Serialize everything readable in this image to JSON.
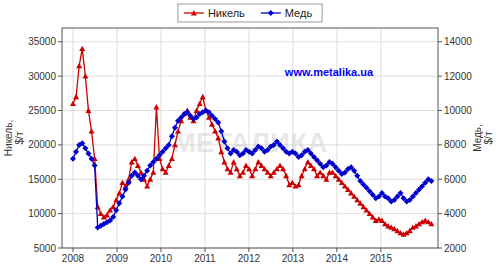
{
  "chart_data": {
    "type": "line",
    "ylabel": "Никель,\n$/т",
    "y2label": "Медь,\n$/т",
    "annotations": [
      {
        "text": "www.metalika.ua",
        "color": "#0000ff"
      },
      {
        "text": "МЕТАЛИКА",
        "color": "#cccccc"
      }
    ],
    "legend": "top",
    "grid": true,
    "xlim": [
      2007.75,
      2016.3
    ],
    "xticks": [
      2008,
      2009,
      2010,
      2011,
      2012,
      2013,
      2014,
      2015
    ],
    "ylim": [
      5000,
      37000
    ],
    "yticks": [
      5000,
      10000,
      15000,
      20000,
      25000,
      30000,
      35000
    ],
    "y2lim": [
      2000,
      14800
    ],
    "y2ticks": [
      2000,
      4000,
      6000,
      8000,
      10000,
      12000,
      14000
    ],
    "x": [
      2008,
      2008.0703,
      2008.1405,
      2008.2108,
      2008.281,
      2008.3513,
      2008.4216,
      2008.4918,
      2008.5621,
      2008.6323,
      2008.7026,
      2008.7728,
      2008.8431,
      2008.9134,
      2008.9836,
      2009.0539,
      2009.1241,
      2009.1944,
      2009.2647,
      2009.3349,
      2009.4052,
      2009.4754,
      2009.5457,
      2009.6159,
      2009.6862,
      2009.7565,
      2009.8267,
      2009.897,
      2009.9672,
      2010.0375,
      2010.1078,
      2010.178,
      2010.2483,
      2010.3185,
      2010.3888,
      2010.4591,
      2010.5293,
      2010.5996,
      2010.6698,
      2010.7401,
      2010.8103,
      2010.8806,
      2010.9509,
      2011.0211,
      2011.0914,
      2011.1616,
      2011.2319,
      2011.3022,
      2011.3724,
      2011.4427,
      2011.5129,
      2011.5832,
      2011.6534,
      2011.7237,
      2011.794,
      2011.8642,
      2011.9345,
      2012.0047,
      2012.075,
      2012.1453,
      2012.2155,
      2012.2858,
      2012.356,
      2012.4263,
      2012.4966,
      2012.5668,
      2012.6371,
      2012.7073,
      2012.7776,
      2012.8478,
      2012.9181,
      2012.9884,
      2013.0586,
      2013.1289,
      2013.1991,
      2013.2694,
      2013.3397,
      2013.4099,
      2013.4802,
      2013.5504,
      2013.6207,
      2013.6909,
      2013.7612,
      2013.8315,
      2013.9017,
      2013.972,
      2014.0422,
      2014.1125,
      2014.1828,
      2014.253,
      2014.3233,
      2014.3935,
      2014.4638,
      2014.5341,
      2014.6043,
      2014.6746,
      2014.7448,
      2014.8151,
      2014.8853,
      2014.9556,
      2015.0259,
      2015.0961,
      2015.1664,
      2015.2366,
      2015.3069,
      2015.3772,
      2015.4474,
      2015.5177,
      2015.5879,
      2015.6582,
      2015.7284,
      2015.7987,
      2015.869,
      2015.9392,
      2016.0095,
      2016.0797,
      2016.15
    ],
    "series": [
      {
        "name": "Никель",
        "color": "#cc0000",
        "marker": "triangle",
        "axis": "y",
        "values": [
          26000,
          27000,
          31500,
          34000,
          30000,
          25000,
          22000,
          18000,
          11000,
          10000,
          9500,
          9800,
          10500,
          11000,
          12000,
          13000,
          14500,
          14000,
          15000,
          17500,
          18000,
          17000,
          16000,
          15000,
          14000,
          15000,
          16000,
          25500,
          18000,
          16500,
          16000,
          17000,
          18000,
          20000,
          22000,
          23500,
          24500,
          25000,
          24000,
          23500,
          25000,
          26000,
          27000,
          25000,
          24000,
          23000,
          22000,
          21000,
          19000,
          17500,
          16500,
          16000,
          17500,
          16500,
          15500,
          16000,
          17000,
          16500,
          15500,
          16500,
          17500,
          17000,
          16500,
          16000,
          15500,
          16000,
          16500,
          17000,
          16500,
          15500,
          14200,
          14500,
          14000,
          14200,
          15500,
          16500,
          17500,
          17000,
          16500,
          15500,
          16000,
          15500,
          15000,
          16000,
          16000,
          15500,
          15000,
          14500,
          14000,
          13500,
          13000,
          12500,
          12000,
          11500,
          11000,
          10500,
          10000,
          9500,
          9000,
          9200,
          9000,
          8500,
          8200,
          8000,
          7800,
          7500,
          7200,
          7000,
          7200,
          7500,
          8000,
          8200,
          8500,
          8800,
          9000,
          8800,
          8500
        ]
      },
      {
        "name": "Медь",
        "color": "#0000cc",
        "marker": "diamond",
        "axis": "y2",
        "values": [
          7200,
          7600,
          8000,
          8100,
          7800,
          7500,
          7200,
          6800,
          3200,
          3300,
          3400,
          3500,
          3600,
          3800,
          4200,
          4600,
          5000,
          5400,
          5800,
          6200,
          6400,
          6200,
          6000,
          6200,
          6500,
          6800,
          7000,
          7200,
          7400,
          7600,
          7800,
          8000,
          8500,
          9000,
          9400,
          9600,
          9800,
          9900,
          9700,
          9500,
          9600,
          9800,
          9900,
          10000,
          9900,
          9700,
          9500,
          9300,
          8800,
          8200,
          7800,
          7500,
          7700,
          7600,
          7400,
          7500,
          7700,
          7600,
          7500,
          7700,
          7900,
          7800,
          7600,
          7700,
          7900,
          8000,
          8200,
          8000,
          7800,
          7600,
          7500,
          7600,
          7500,
          7300,
          7400,
          7600,
          7700,
          7500,
          7300,
          7100,
          6900,
          6700,
          6800,
          7000,
          6900,
          6700,
          6500,
          6300,
          6400,
          6600,
          6700,
          6500,
          6200,
          5900,
          5700,
          5500,
          5300,
          5100,
          4900,
          5000,
          5200,
          5000,
          4900,
          4700,
          4800,
          5000,
          5200,
          4900,
          4700,
          4800,
          5000,
          5200,
          5400,
          5600,
          5800,
          6000,
          5900
        ]
      }
    ]
  }
}
